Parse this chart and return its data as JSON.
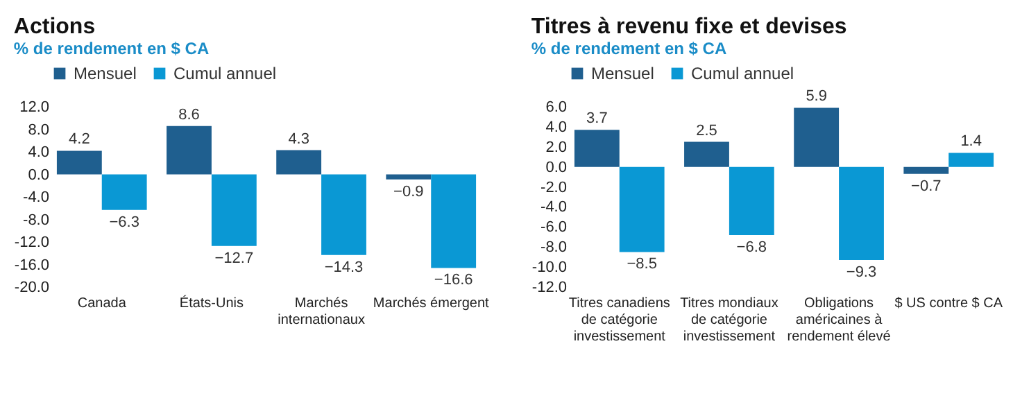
{
  "chart_data": [
    {
      "type": "bar",
      "title": "Actions",
      "subtitle": "% de rendement en $ CA",
      "categories": [
        "Canada",
        "États-Unis",
        "Marchés internationaux",
        "Marchés émergent"
      ],
      "series": [
        {
          "name": "Mensuel",
          "color": "#1f5f8f",
          "values": [
            4.2,
            8.6,
            4.3,
            -0.9
          ]
        },
        {
          "name": "Cumul annuel",
          "color": "#0a98d4",
          "values": [
            -6.3,
            -12.7,
            -14.3,
            -16.6
          ]
        }
      ],
      "ylim": [
        -20,
        12
      ],
      "yticks": [
        {
          "value": -20,
          "label": "-20.0"
        },
        {
          "value": -16,
          "label": "-16.0"
        },
        {
          "value": -12,
          "label": "-12.0"
        },
        {
          "value": -8,
          "label": "-8.0"
        },
        {
          "value": -4,
          "label": "-4.0"
        },
        {
          "value": 0,
          "label": "0.0"
        },
        {
          "value": 4,
          "label": "4.0"
        },
        {
          "value": 8,
          "label": "8.0"
        },
        {
          "value": 12,
          "label": "12.0"
        }
      ],
      "data_labels": true,
      "legend": "top left",
      "grid": false
    },
    {
      "type": "bar",
      "title": "Titres à revenu fixe et devises",
      "subtitle": "% de rendement en $ CA",
      "categories": [
        "Titres canadiens de catégorie investissement",
        "Titres mondiaux de catégorie investissement",
        "Obligations américaines à rendement élevé",
        "$ US contre $ CA"
      ],
      "series": [
        {
          "name": "Mensuel",
          "color": "#1f5f8f",
          "values": [
            3.7,
            2.5,
            5.9,
            -0.7
          ]
        },
        {
          "name": "Cumul annuel",
          "color": "#0a98d4",
          "values": [
            -8.5,
            -6.8,
            -9.3,
            1.4
          ]
        }
      ],
      "ylim": [
        -12,
        6
      ],
      "yticks": [
        {
          "value": -12,
          "label": "-12.0"
        },
        {
          "value": -10,
          "label": "-10.0"
        },
        {
          "value": -8,
          "label": "-8.0"
        },
        {
          "value": -6,
          "label": "-6.0"
        },
        {
          "value": -4,
          "label": "-4.0"
        },
        {
          "value": -2,
          "label": "-2.0"
        },
        {
          "value": 0,
          "label": "0.0"
        },
        {
          "value": 2,
          "label": "2.0"
        },
        {
          "value": 4,
          "label": "4.0"
        },
        {
          "value": 6,
          "label": "6.0"
        }
      ],
      "data_labels": true,
      "legend": "top left",
      "grid": false
    }
  ]
}
